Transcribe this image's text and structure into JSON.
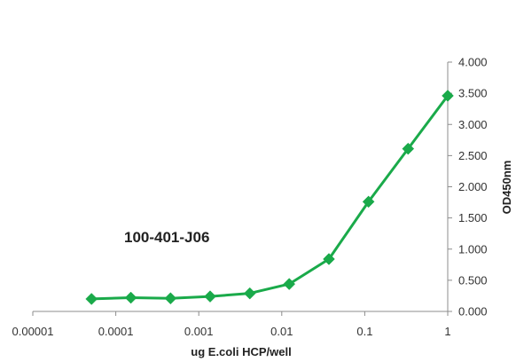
{
  "chart_data": {
    "type": "line",
    "title": "",
    "annotation": "100-401-J06",
    "xlabel": "ug E.coli HCP/well",
    "ylabel": "OD450nm",
    "x_scale": "log",
    "xlim": [
      1e-05,
      1
    ],
    "ylim": [
      0,
      4
    ],
    "x_tick_labels": [
      "0.00001",
      "0.0001",
      "0.001",
      "0.01",
      "0.1",
      "1"
    ],
    "y_tick_labels": [
      "0.000",
      "0.500",
      "1.000",
      "1.500",
      "2.000",
      "2.500",
      "3.000",
      "3.500",
      "4.000"
    ],
    "grid": false,
    "legend": "none",
    "y_axis_side": "right",
    "series": [
      {
        "color": "#1aaa4a",
        "marker": "diamond",
        "x": [
          5.1e-05,
          0.000152,
          0.000457,
          0.00137,
          0.00412,
          0.0123,
          0.037,
          0.111,
          0.333,
          1
        ],
        "y": [
          0.2,
          0.22,
          0.21,
          0.24,
          0.29,
          0.44,
          0.84,
          1.76,
          2.61,
          3.46
        ]
      }
    ]
  }
}
